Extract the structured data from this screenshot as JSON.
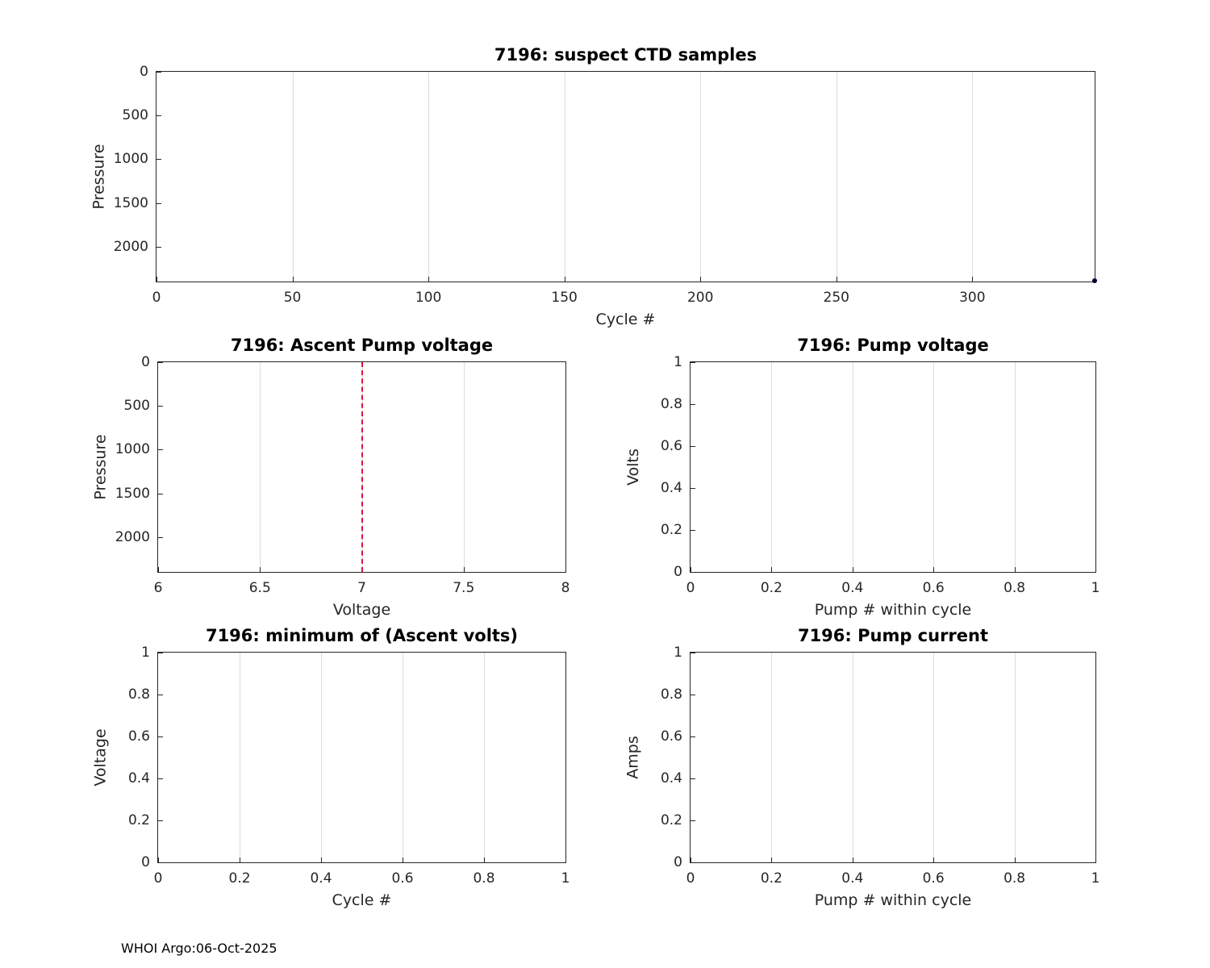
{
  "style": {
    "background": "#ffffff",
    "axis_color": "#262626",
    "grid_color": "#dcdcdc",
    "text_color": "#262626",
    "title_color": "#000000",
    "reference_line_color": "#dc143c",
    "point_color": "#000033"
  },
  "footer": "WHOI Argo:06-Oct-2025",
  "chart_data": [
    {
      "type": "scatter",
      "title": "7196: suspect CTD samples",
      "xlabel": "Cycle #",
      "ylabel": "Pressure",
      "xlim": [
        0,
        345
      ],
      "ylim": [
        0,
        2400
      ],
      "y_reversed": true,
      "x_ticks": [
        0,
        50,
        100,
        150,
        200,
        250,
        300
      ],
      "y_ticks": [
        0,
        500,
        1000,
        1500,
        2000
      ],
      "grid": "x",
      "legend": "none",
      "points": [
        {
          "x": 345,
          "y": 2390,
          "color": "#000033",
          "size": 6
        }
      ],
      "vlines": []
    },
    {
      "type": "line",
      "title": "7196: Ascent Pump voltage",
      "xlabel": "Voltage",
      "ylabel": "Pressure",
      "xlim": [
        6,
        8
      ],
      "ylim": [
        0,
        2400
      ],
      "y_reversed": true,
      "x_ticks": [
        6,
        6.5,
        7,
        7.5,
        8
      ],
      "y_ticks": [
        0,
        500,
        1000,
        1500,
        2000
      ],
      "grid": "x",
      "legend": "none",
      "points": [],
      "vlines": [
        {
          "x": 7,
          "color": "#dc143c",
          "style": "dashed"
        }
      ]
    },
    {
      "type": "line",
      "title": "7196: Pump voltage",
      "xlabel": "Pump # within cycle",
      "ylabel": "Volts",
      "xlim": [
        0,
        1
      ],
      "ylim": [
        0,
        1
      ],
      "y_reversed": false,
      "x_ticks": [
        0,
        0.2,
        0.4,
        0.6,
        0.8,
        1
      ],
      "y_ticks": [
        0,
        0.2,
        0.4,
        0.6,
        0.8,
        1
      ],
      "grid": "x",
      "legend": "none",
      "points": [],
      "vlines": []
    },
    {
      "type": "line",
      "title": "7196: minimum of (Ascent volts)",
      "xlabel": "Cycle #",
      "ylabel": "Voltage",
      "xlim": [
        0,
        1
      ],
      "ylim": [
        0,
        1
      ],
      "y_reversed": false,
      "x_ticks": [
        0,
        0.2,
        0.4,
        0.6,
        0.8,
        1
      ],
      "y_ticks": [
        0,
        0.2,
        0.4,
        0.6,
        0.8,
        1
      ],
      "grid": "x",
      "legend": "none",
      "points": [],
      "vlines": []
    },
    {
      "type": "line",
      "title": "7196: Pump current",
      "xlabel": "Pump # within cycle",
      "ylabel": "Amps",
      "xlim": [
        0,
        1
      ],
      "ylim": [
        0,
        1
      ],
      "y_reversed": false,
      "x_ticks": [
        0,
        0.2,
        0.4,
        0.6,
        0.8,
        1
      ],
      "y_ticks": [
        0,
        0.2,
        0.4,
        0.6,
        0.8,
        1
      ],
      "grid": "x",
      "legend": "none",
      "points": [],
      "vlines": []
    }
  ]
}
